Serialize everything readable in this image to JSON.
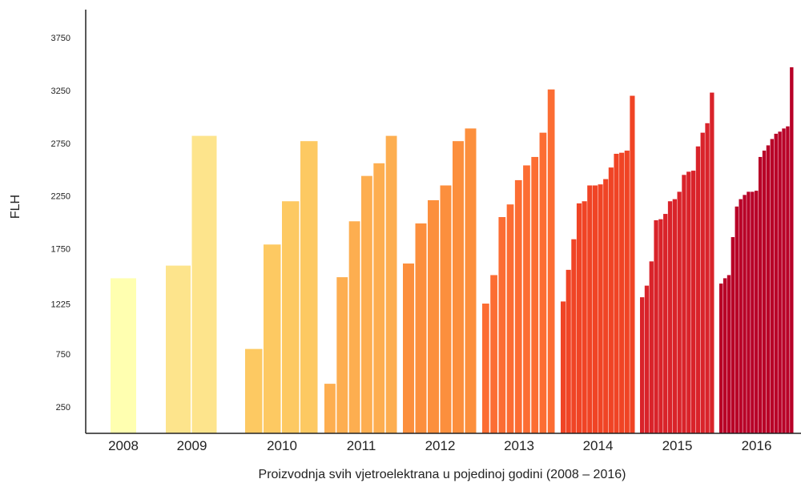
{
  "chart_data": {
    "type": "bar",
    "title": "",
    "xlabel": "Proizvodnja svih vjetroelektrana u pojedinoj godini (2008 – 2016)",
    "ylabel": "FLH",
    "yticks": [
      "250",
      "750",
      "1225",
      "1750",
      "2250",
      "2750",
      "3250",
      "3750"
    ],
    "ylim": [
      0,
      4000
    ],
    "grid": false,
    "groups": [
      {
        "year": "2008",
        "color": "#ffffb0",
        "values": [
          1470
        ]
      },
      {
        "year": "2009",
        "color": "#fde48c",
        "values": [
          1590,
          2820
        ]
      },
      {
        "year": "2010",
        "color": "#fdc962",
        "values": [
          800,
          1790,
          2200,
          2770
        ]
      },
      {
        "year": "2011",
        "color": "#fdae50",
        "values": [
          470,
          1480,
          2010,
          2440,
          2560,
          2820
        ]
      },
      {
        "year": "2012",
        "color": "#fc8f3d",
        "values": [
          1610,
          1990,
          2210,
          2350,
          2770,
          2890
        ]
      },
      {
        "year": "2013",
        "color": "#fc6d33",
        "values": [
          1230,
          1500,
          2050,
          2170,
          2400,
          2540,
          2620,
          2850,
          3260
        ]
      },
      {
        "year": "2014",
        "color": "#f04425",
        "values": [
          1250,
          1550,
          1840,
          2180,
          2200,
          2350,
          2350,
          2360,
          2410,
          2520,
          2650,
          2660,
          2680,
          3200
        ]
      },
      {
        "year": "2015",
        "color": "#d9232a",
        "values": [
          1290,
          1400,
          1630,
          2020,
          2030,
          2080,
          2200,
          2220,
          2290,
          2450,
          2480,
          2490,
          2720,
          2850,
          2940,
          3230
        ]
      },
      {
        "year": "2016",
        "color": "#b80027",
        "values": [
          1420,
          1470,
          1500,
          1860,
          2150,
          2220,
          2260,
          2290,
          2290,
          2300,
          2620,
          2680,
          2730,
          2790,
          2840,
          2860,
          2890,
          2910,
          3470
        ]
      }
    ]
  }
}
